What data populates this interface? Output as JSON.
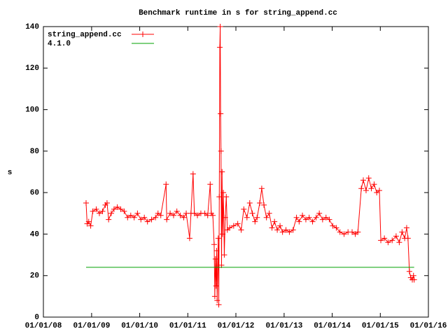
{
  "chart_data": {
    "type": "line",
    "title": "Benchmark runtime in s for string_append.cc",
    "y_label": "s",
    "legend": "top-left",
    "xlim": [
      "2008-01-01",
      "2016-01-01"
    ],
    "xticks": [
      {
        "value": "2008-01-01",
        "label": "01/01/08"
      },
      {
        "value": "2009-01-01",
        "label": "01/01/09"
      },
      {
        "value": "2010-01-01",
        "label": "01/01/10"
      },
      {
        "value": "2011-01-01",
        "label": "01/01/11"
      },
      {
        "value": "2012-01-01",
        "label": "01/01/12"
      },
      {
        "value": "2013-01-01",
        "label": "01/01/13"
      },
      {
        "value": "2014-01-01",
        "label": "01/01/14"
      },
      {
        "value": "2015-01-01",
        "label": "01/01/15"
      },
      {
        "value": "2016-01-01",
        "label": "01/01/16"
      }
    ],
    "ylim": [
      0,
      140
    ],
    "yticks": [
      0,
      20,
      40,
      60,
      80,
      100,
      120,
      140
    ],
    "series": [
      {
        "name": "string_append.cc",
        "color": "#ff0000",
        "markers": true,
        "x": [
          "2008-11-20",
          "2008-11-28",
          "2008-12-10",
          "2008-12-25",
          "2009-01-10",
          "2009-02-05",
          "2009-03-01",
          "2009-03-25",
          "2009-04-15",
          "2009-04-28",
          "2009-05-10",
          "2009-05-30",
          "2009-06-20",
          "2009-07-15",
          "2009-08-10",
          "2009-09-05",
          "2009-10-01",
          "2009-10-25",
          "2009-11-20",
          "2009-12-15",
          "2010-01-10",
          "2010-02-05",
          "2010-03-01",
          "2010-04-01",
          "2010-05-01",
          "2010-05-20",
          "2010-06-10",
          "2010-07-20",
          "2010-07-25",
          "2010-08-20",
          "2010-09-15",
          "2010-10-10",
          "2010-11-05",
          "2010-12-01",
          "2010-12-20",
          "2011-01-15",
          "2011-01-25",
          "2011-02-10",
          "2011-02-20",
          "2011-03-15",
          "2011-04-10",
          "2011-05-10",
          "2011-06-01",
          "2011-06-20",
          "2011-06-28",
          "2011-07-10",
          "2011-07-20",
          "2011-07-25",
          "2011-07-30",
          "2011-08-04",
          "2011-08-08",
          "2011-08-12",
          "2011-08-16",
          "2011-08-20",
          "2011-08-24",
          "2011-08-28",
          "2011-09-01",
          "2011-09-04",
          "2011-09-07",
          "2011-09-10",
          "2011-09-14",
          "2011-09-18",
          "2011-09-22",
          "2011-09-28",
          "2011-10-05",
          "2011-10-12",
          "2011-10-20",
          "2011-10-28",
          "2011-11-15",
          "2011-12-15",
          "2012-01-15",
          "2012-02-10",
          "2012-03-01",
          "2012-03-25",
          "2012-04-15",
          "2012-05-05",
          "2012-05-25",
          "2012-06-10",
          "2012-06-30",
          "2012-07-15",
          "2012-08-01",
          "2012-08-20",
          "2012-09-10",
          "2012-10-01",
          "2012-10-20",
          "2012-11-10",
          "2012-12-01",
          "2012-12-20",
          "2013-01-15",
          "2013-02-10",
          "2013-03-10",
          "2013-04-05",
          "2013-04-25",
          "2013-05-20",
          "2013-06-15",
          "2013-07-10",
          "2013-08-05",
          "2013-09-01",
          "2013-09-25",
          "2013-10-20",
          "2013-11-15",
          "2013-12-10",
          "2014-01-05",
          "2014-02-01",
          "2014-03-01",
          "2014-04-01",
          "2014-05-01",
          "2014-06-01",
          "2014-06-25",
          "2014-07-15",
          "2014-08-10",
          "2014-08-25",
          "2014-09-15",
          "2014-10-05",
          "2014-10-25",
          "2014-11-15",
          "2014-12-05",
          "2014-12-25",
          "2015-01-05",
          "2015-02-01",
          "2015-03-01",
          "2015-04-01",
          "2015-05-01",
          "2015-05-25",
          "2015-06-15",
          "2015-07-05",
          "2015-07-20",
          "2015-07-30",
          "2015-08-10",
          "2015-08-20",
          "2015-09-01",
          "2015-09-10",
          "2015-09-15"
        ],
        "values": [
          55,
          45,
          46,
          44,
          51,
          52,
          50,
          51,
          54,
          55,
          47,
          50,
          52,
          53,
          52,
          51,
          48,
          49,
          48,
          50,
          47,
          48,
          46,
          47,
          48,
          50,
          49,
          64,
          47,
          50,
          49,
          51,
          49,
          48,
          50,
          38,
          50,
          69,
          50,
          49,
          50,
          50,
          49,
          64,
          50,
          49,
          35,
          10,
          28,
          15,
          32,
          8,
          24,
          38,
          6,
          58,
          130,
          140,
          98,
          80,
          25,
          70,
          40,
          60,
          30,
          48,
          58,
          42,
          43,
          44,
          45,
          42,
          52,
          48,
          55,
          50,
          46,
          48,
          55,
          62,
          54,
          48,
          50,
          43,
          46,
          42,
          44,
          41,
          42,
          41,
          42,
          48,
          46,
          49,
          47,
          48,
          46,
          48,
          50,
          47,
          48,
          47,
          44,
          43,
          41,
          40,
          41,
          41,
          40,
          41,
          62,
          66,
          61,
          67,
          62,
          64,
          60,
          61,
          37,
          38,
          36,
          37,
          39,
          36,
          41,
          38,
          43,
          38,
          22,
          19,
          18,
          20,
          18
        ]
      },
      {
        "name": "4.1.0",
        "color": "#00a000",
        "markers": false,
        "x": [
          "2008-11-20",
          "2015-09-15"
        ],
        "values": [
          24,
          24
        ]
      }
    ]
  }
}
